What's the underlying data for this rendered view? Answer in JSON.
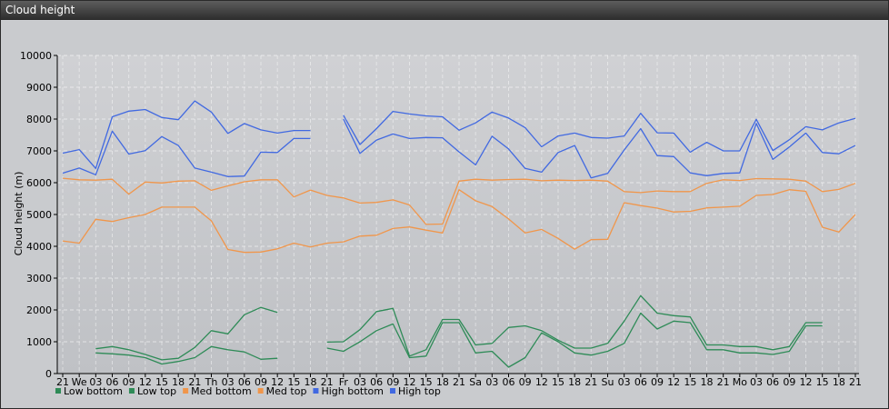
{
  "window": {
    "title": "Cloud height"
  },
  "chart_data": {
    "type": "line",
    "ylabel": "Cloud height (m)",
    "ylim": [
      0,
      10000
    ],
    "yticks": [
      0,
      1000,
      2000,
      3000,
      4000,
      5000,
      6000,
      7000,
      8000,
      9000,
      10000
    ],
    "grid": true,
    "legend_position": "bottom-left",
    "categories": [
      "21",
      "We",
      "03",
      "06",
      "09",
      "12",
      "15",
      "18",
      "21",
      "Th",
      "03",
      "06",
      "09",
      "12",
      "15",
      "18",
      "21",
      "Fr",
      "03",
      "06",
      "09",
      "12",
      "15",
      "18",
      "21",
      "Sa",
      "03",
      "06",
      "09",
      "12",
      "15",
      "18",
      "21",
      "Su",
      "03",
      "06",
      "09",
      "12",
      "15",
      "18",
      "21",
      "Mo",
      "03",
      "06",
      "09",
      "12",
      "15",
      "18",
      "21"
    ],
    "series": [
      {
        "name": "Low bottom",
        "color": "#2e8b57",
        "values": [
          null,
          null,
          650,
          620,
          580,
          500,
          300,
          380,
          500,
          850,
          750,
          680,
          450,
          480,
          null,
          null,
          800,
          700,
          1000,
          1350,
          1560,
          500,
          550,
          1600,
          1600,
          650,
          700,
          200,
          500,
          1280,
          1000,
          650,
          580,
          700,
          950,
          1900,
          1400,
          1650,
          1600,
          750,
          750,
          650,
          650,
          600,
          700,
          1500,
          1500,
          null,
          null
        ]
      },
      {
        "name": "Low top",
        "color": "#2e8b57",
        "values": [
          null,
          null,
          780,
          850,
          750,
          600,
          430,
          480,
          820,
          1350,
          1250,
          1850,
          2080,
          1920,
          null,
          null,
          990,
          1000,
          1380,
          1950,
          2050,
          550,
          750,
          1700,
          1700,
          900,
          950,
          1450,
          1500,
          1350,
          1050,
          800,
          800,
          950,
          1650,
          2450,
          1900,
          1820,
          1780,
          900,
          900,
          850,
          850,
          750,
          850,
          1600,
          1600,
          null,
          null
        ]
      },
      {
        "name": "Med bottom",
        "color": "#f0964b",
        "values": [
          4170,
          4100,
          4850,
          4780,
          4900,
          5000,
          5230,
          5230,
          5230,
          4800,
          3900,
          3810,
          3820,
          3920,
          4100,
          3980,
          4100,
          4140,
          4320,
          4350,
          4560,
          4610,
          4510,
          4420,
          5780,
          5430,
          5250,
          4860,
          4420,
          4530,
          4250,
          3910,
          4210,
          4220,
          5370,
          5280,
          5200,
          5080,
          5100,
          5210,
          5230,
          5260,
          5600,
          5630,
          5780,
          5730,
          4600,
          4450,
          5000
        ]
      },
      {
        "name": "Med top",
        "color": "#f0964b",
        "values": [
          6140,
          6090,
          6080,
          6110,
          5640,
          6020,
          5990,
          6050,
          6060,
          5760,
          5900,
          6030,
          6090,
          6090,
          5550,
          5770,
          5600,
          5520,
          5360,
          5380,
          5460,
          5300,
          4690,
          4700,
          6050,
          6110,
          6080,
          6100,
          6110,
          6060,
          6080,
          6070,
          6080,
          6050,
          5720,
          5690,
          5740,
          5720,
          5720,
          5980,
          6090,
          6070,
          6130,
          6120,
          6110,
          6050,
          5720,
          5790,
          5980
        ]
      },
      {
        "name": "High bottom",
        "color": "#4169e1",
        "values": [
          6300,
          6460,
          6250,
          7620,
          6900,
          7010,
          7450,
          7170,
          6460,
          6330,
          6190,
          6210,
          6960,
          6950,
          7390,
          7390,
          null,
          8000,
          6920,
          7340,
          7530,
          7390,
          7420,
          7410,
          6970,
          6560,
          7460,
          7060,
          6450,
          6330,
          6950,
          7170,
          6150,
          6290,
          7030,
          7700,
          6850,
          6820,
          6310,
          6220,
          6290,
          6310,
          7860,
          6730,
          7120,
          7560,
          6950,
          6910,
          7170
        ]
      },
      {
        "name": "High top",
        "color": "#4169e1",
        "values": [
          6930,
          7040,
          6450,
          8070,
          8250,
          8300,
          8050,
          7980,
          8570,
          8220,
          7550,
          7860,
          7660,
          7560,
          7640,
          7640,
          null,
          8120,
          7200,
          7700,
          8240,
          8160,
          8100,
          8070,
          7650,
          7880,
          8220,
          8030,
          7730,
          7130,
          7470,
          7560,
          7420,
          7400,
          7470,
          8180,
          7570,
          7560,
          6960,
          7270,
          7000,
          7000,
          7990,
          7010,
          7350,
          7760,
          7660,
          7880,
          8020
        ]
      }
    ]
  }
}
